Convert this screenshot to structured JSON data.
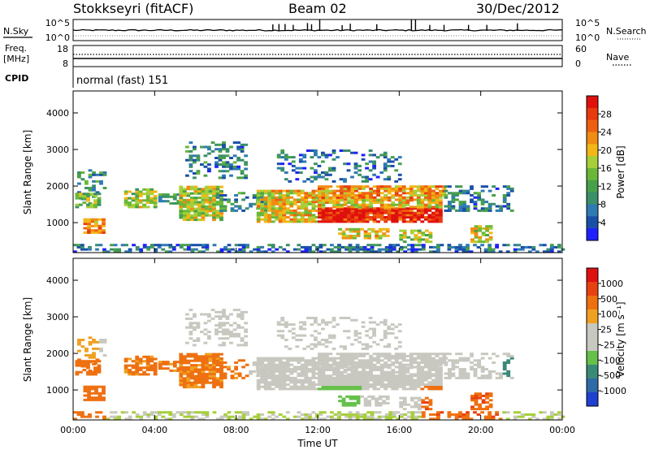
{
  "header": {
    "station": "Stokkseyri (fitACF)",
    "beam": "Beam 02",
    "date": "30/Dec/2012"
  },
  "noise_panel": {
    "left_label": "N.Sky",
    "right_label": "N.Search",
    "left_ticks": [
      "10^5",
      "10^0"
    ],
    "right_ticks": [
      "10^5",
      "10^0"
    ]
  },
  "freq_panel": {
    "left_label_1": "Freq.",
    "left_label_2": "[MHz]",
    "left_ticks": [
      "18",
      "8"
    ],
    "right_label": "Nave",
    "right_ticks": [
      "60",
      "0"
    ]
  },
  "cpid": {
    "label": "CPID",
    "value": "normal (fast) 151"
  },
  "chart_data": [
    {
      "type": "heatmap",
      "parameter": "power",
      "xlabel": "Time UT",
      "ylabel": "Slant Range [km]",
      "x_ticks": [
        "00:00",
        "04:00",
        "08:00",
        "12:00",
        "16:00",
        "20:00",
        "00:00"
      ],
      "xlim_hours": [
        0,
        24
      ],
      "ylim_km": [
        180,
        4600
      ],
      "y_ticks": [
        1000,
        2000,
        3000,
        4000
      ],
      "colorbar_label": "Power [dB]",
      "colorbar_ticks": [
        "28",
        "24",
        "20",
        "16",
        "12",
        "8",
        "4"
      ],
      "colorbar_range": [
        0,
        32
      ],
      "colors": [
        "#1f1fff",
        "#1a4fa8",
        "#2e7ab3",
        "#3b8f6a",
        "#47a04a",
        "#6ab839",
        "#a6cf3a",
        "#f2b716",
        "#f08c12",
        "#ee6010",
        "#e83a0e",
        "#e0100c"
      ]
    },
    {
      "type": "heatmap",
      "parameter": "velocity",
      "xlabel": "Time UT",
      "ylabel": "Slant Range [km]",
      "x_ticks": [
        "00:00",
        "04:00",
        "08:00",
        "12:00",
        "16:00",
        "20:00",
        "00:00"
      ],
      "xlim_hours": [
        0,
        24
      ],
      "ylim_km": [
        180,
        4600
      ],
      "y_ticks": [
        1000,
        2000,
        3000,
        4000
      ],
      "colorbar_label": "Velocity [m s⁻¹]",
      "colorbar_ticks": [
        "1000",
        "500",
        "100",
        "25",
        "-25",
        "-100",
        "-500",
        "-1000"
      ],
      "colors": [
        "#1f40d0",
        "#2f6aa8",
        "#3a8a78",
        "#66c04a",
        "#c8c8c0",
        "#c8c8c0",
        "#f0a020",
        "#ee7010",
        "#e84010",
        "#e01010"
      ]
    }
  ]
}
